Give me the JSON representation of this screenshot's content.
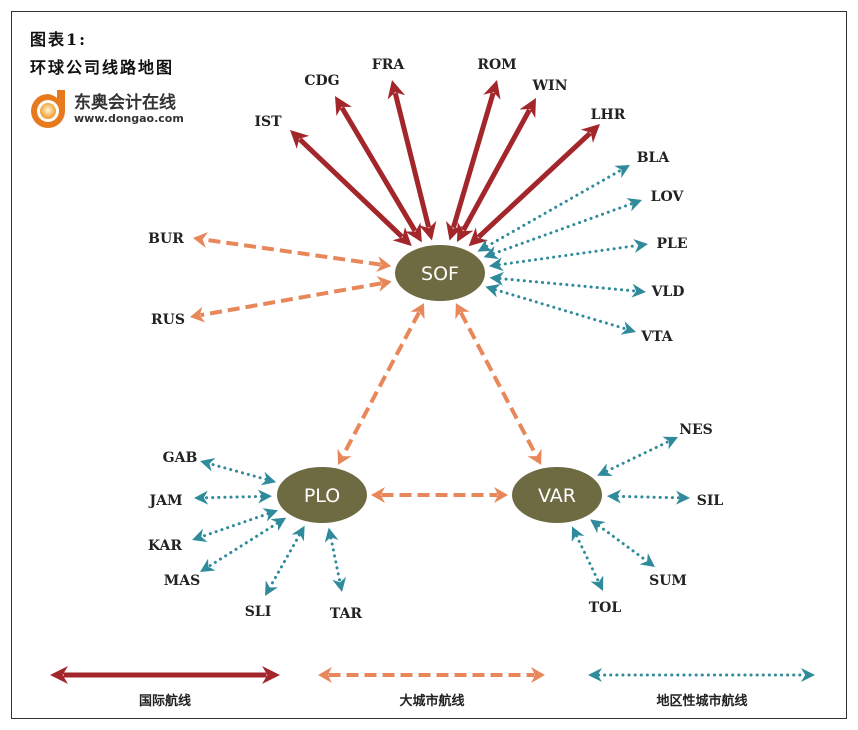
{
  "header": {
    "figure_label": "图表1:",
    "title": "环球公司线路地图"
  },
  "logo": {
    "name": "东奥会计在线",
    "url": "www.dongao.com"
  },
  "colors": {
    "international": "#a3262b",
    "major_city": "#e8875a",
    "regional": "#2f8b9b",
    "hub": "#6e6a42",
    "hub_text": "#ffffff"
  },
  "hubs": [
    "SOF",
    "PLO",
    "VAR"
  ],
  "destinations": [
    "IST",
    "CDG",
    "FRA",
    "ROM",
    "WIN",
    "LHR",
    "BLA",
    "LOV",
    "PLE",
    "VLD",
    "VTA",
    "BUR",
    "RUS",
    "GAB",
    "JAM",
    "KAR",
    "MAS",
    "SLI",
    "TAR",
    "NES",
    "SIL",
    "SUM",
    "TOL"
  ],
  "routes": [
    {
      "from": "SOF",
      "to": "IST",
      "type": "international"
    },
    {
      "from": "SOF",
      "to": "CDG",
      "type": "international"
    },
    {
      "from": "SOF",
      "to": "FRA",
      "type": "international"
    },
    {
      "from": "SOF",
      "to": "ROM",
      "type": "international"
    },
    {
      "from": "SOF",
      "to": "WIN",
      "type": "international"
    },
    {
      "from": "SOF",
      "to": "LHR",
      "type": "international"
    },
    {
      "from": "SOF",
      "to": "BLA",
      "type": "regional"
    },
    {
      "from": "SOF",
      "to": "LOV",
      "type": "regional"
    },
    {
      "from": "SOF",
      "to": "PLE",
      "type": "regional"
    },
    {
      "from": "SOF",
      "to": "VLD",
      "type": "regional"
    },
    {
      "from": "SOF",
      "to": "VTA",
      "type": "regional"
    },
    {
      "from": "SOF",
      "to": "BUR",
      "type": "major_city"
    },
    {
      "from": "SOF",
      "to": "RUS",
      "type": "major_city"
    },
    {
      "from": "SOF",
      "to": "PLO",
      "type": "major_city"
    },
    {
      "from": "SOF",
      "to": "VAR",
      "type": "major_city"
    },
    {
      "from": "PLO",
      "to": "VAR",
      "type": "major_city"
    },
    {
      "from": "PLO",
      "to": "GAB",
      "type": "regional"
    },
    {
      "from": "PLO",
      "to": "JAM",
      "type": "regional"
    },
    {
      "from": "PLO",
      "to": "KAR",
      "type": "regional"
    },
    {
      "from": "PLO",
      "to": "MAS",
      "type": "regional"
    },
    {
      "from": "PLO",
      "to": "SLI",
      "type": "regional"
    },
    {
      "from": "PLO",
      "to": "TAR",
      "type": "regional"
    },
    {
      "from": "VAR",
      "to": "NES",
      "type": "regional"
    },
    {
      "from": "VAR",
      "to": "SIL",
      "type": "regional"
    },
    {
      "from": "VAR",
      "to": "SUM",
      "type": "regional"
    },
    {
      "from": "VAR",
      "to": "TOL",
      "type": "regional"
    }
  ],
  "legend": [
    {
      "type": "international",
      "label": "国际航线"
    },
    {
      "type": "major_city",
      "label": "大城市航线"
    },
    {
      "type": "regional",
      "label": "地区性城市航线"
    }
  ]
}
